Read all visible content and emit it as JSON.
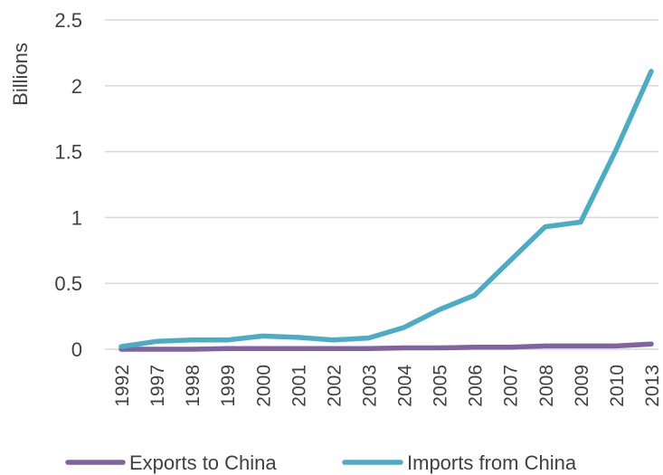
{
  "chart_data": {
    "type": "line",
    "title": "",
    "xlabel": "",
    "ylabel": "Billions",
    "ylim": [
      0,
      2.5
    ],
    "yticks": [
      "0",
      "0.5",
      "1",
      "1.5",
      "2",
      "2.5"
    ],
    "grid": true,
    "legend_position": "bottom",
    "categories": [
      "1992",
      "1997",
      "1998",
      "1999",
      "2000",
      "2001",
      "2002",
      "2003",
      "2004",
      "2005",
      "2006",
      "2007",
      "2008",
      "2009",
      "2010",
      "2013"
    ],
    "series": [
      {
        "name": "Exports to China",
        "color": "#8064a2",
        "values": [
          0.0,
          0.0,
          0.0,
          0.005,
          0.005,
          0.005,
          0.005,
          0.005,
          0.01,
          0.01,
          0.015,
          0.015,
          0.025,
          0.025,
          0.025,
          0.04
        ]
      },
      {
        "name": "Imports from China",
        "color": "#4bacc6",
        "values": [
          0.02,
          0.06,
          0.07,
          0.07,
          0.1,
          0.09,
          0.07,
          0.085,
          0.165,
          0.3,
          0.41,
          0.67,
          0.93,
          0.965,
          1.51,
          2.11
        ]
      }
    ]
  }
}
